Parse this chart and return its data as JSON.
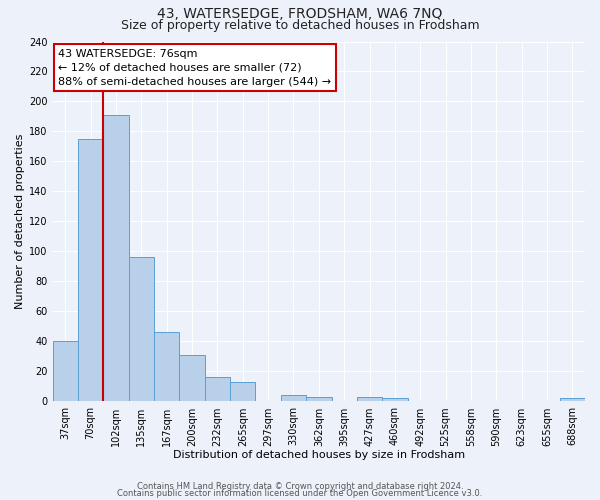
{
  "title": "43, WATERSEDGE, FRODSHAM, WA6 7NQ",
  "subtitle": "Size of property relative to detached houses in Frodsham",
  "xlabel": "Distribution of detached houses by size in Frodsham",
  "ylabel": "Number of detached properties",
  "bar_labels": [
    "37sqm",
    "70sqm",
    "102sqm",
    "135sqm",
    "167sqm",
    "200sqm",
    "232sqm",
    "265sqm",
    "297sqm",
    "330sqm",
    "362sqm",
    "395sqm",
    "427sqm",
    "460sqm",
    "492sqm",
    "525sqm",
    "558sqm",
    "590sqm",
    "623sqm",
    "655sqm",
    "688sqm"
  ],
  "bar_values": [
    40,
    175,
    191,
    96,
    46,
    31,
    16,
    13,
    0,
    4,
    3,
    0,
    3,
    2,
    0,
    0,
    0,
    0,
    0,
    0,
    2
  ],
  "bar_color": "#b8d0ea",
  "bar_edge_color": "#5a9fd4",
  "vline_color": "#cc0000",
  "vline_x_pos": 1.0,
  "annotation_title": "43 WATERSEDGE: 76sqm",
  "annotation_line1": "← 12% of detached houses are smaller (72)",
  "annotation_line2": "88% of semi-detached houses are larger (544) →",
  "annotation_box_color": "#ffffff",
  "annotation_box_edge": "#cc0000",
  "ylim": [
    0,
    240
  ],
  "yticks": [
    0,
    20,
    40,
    60,
    80,
    100,
    120,
    140,
    160,
    180,
    200,
    220,
    240
  ],
  "bg_color": "#edf2fa",
  "plot_bg_color": "#edf2fa",
  "grid_color": "#ffffff",
  "title_fontsize": 10,
  "subtitle_fontsize": 9,
  "label_fontsize": 8,
  "tick_fontsize": 7,
  "annot_fontsize": 8,
  "footer_fontsize": 6,
  "footer1": "Contains HM Land Registry data © Crown copyright and database right 2024.",
  "footer2": "Contains public sector information licensed under the Open Government Licence v3.0."
}
